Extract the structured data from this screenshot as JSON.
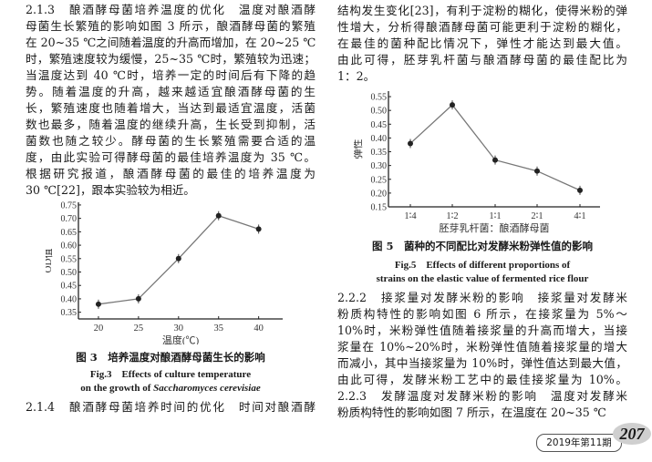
{
  "left_column": {
    "lines": [
      "2.1.3　酿酒酵母菌培养温度的优化　温度对酿酒酵",
      "母菌生长繁殖的影响如图 3 所示，酿酒酵母菌的繁殖",
      "在 20~35 ℃之间随着温度的升高而增加，在 20~25 ℃",
      "时，繁殖速度较为缓慢，25~35 ℃时，繁殖较为迅速；",
      "当温度达到 40 ℃时，培养一定的时间后有下降的趋",
      "势。随着温度的升高，越来越适宜酿酒酵母菌的生",
      "长，繁殖速度也随着增大，当达到最适宜温度，活菌",
      "数也最多，随着温度的继续升高，生长受到抑制，活",
      "菌数也随之较少。酵母菌的生长繁殖需要合适的温",
      "度，由此实验可得酵母菌的最佳培养温度为 35 ℃。",
      "根据研究报道，酿酒酵母菌的最佳的培养温度为",
      "30 ℃[22]，跟本实验较为相近。"
    ],
    "fig3_caption_cn": "图 3　培养温度对酿酒酵母菌生长的影响",
    "fig3_caption_en1": "Fig.3　Effects of culture temperature",
    "fig3_caption_en2_pre": "on the growth of ",
    "fig3_caption_en2_italic": "Saccharomyces cerevisiae",
    "section_214": "2.1.4　酿酒酵母菌培养时间的优化　时间对酿酒酵"
  },
  "right_column": {
    "lines_top": [
      "结构发生变化[23]，有利于淀粉的糊化，使得米粉的弹",
      "性增大，分析得酿酒酵母菌可能更利于淀粉的糊化，",
      "在最佳的菌种配比情况下，弹性才能达到最大值。",
      "由此可得，胚芽乳杆菌与酿酒酵母菌的最佳配比为",
      "1：2。"
    ],
    "fig5_caption_cn": "图 5　菌种的不同配比对发酵米粉弹性值的影响",
    "fig5_caption_en1": "Fig.5　Effects of different proportions of",
    "fig5_caption_en2": "strains on the elastic value of fermented rice flour",
    "lines_bottom": [
      "2.2.2　接浆量对发酵米粉的影响　接浆量对发酵米",
      "粉质构特性的影响如图 6 所示，在接浆量为 5%～",
      "10%时，米粉弹性值随着接浆量的升高而增大，当接",
      "浆量在 10%~20%时，米粉弹性值随着接浆量的增大",
      "而减小，其中当接浆量为 10%时，弹性值达到最大值，",
      "由此可得，发酵米粉工艺中的最佳接浆量为 10%。",
      "2.2.3　发酵温度对发酵米粉的影响　温度对发酵米",
      "粉质构特性的影响如图 7 所示，在温度在 20~35 ℃"
    ]
  },
  "footer": {
    "issue": "2019年第11期",
    "page_number": "207"
  },
  "chart_data": [
    {
      "type": "line",
      "xlabel": "温度(℃)",
      "ylabel": "OD值",
      "x": [
        20,
        25,
        30,
        35,
        40
      ],
      "y": [
        0.38,
        0.4,
        0.55,
        0.71,
        0.66
      ],
      "error_bars": true,
      "x_ticks": [
        "20",
        "25",
        "30",
        "35",
        "40"
      ],
      "y_ticks": [
        "0.35",
        "0.40",
        "0.45",
        "0.50",
        "0.55",
        "0.60",
        "0.65",
        "0.70",
        "0.75"
      ],
      "xlim": [
        17.5,
        43
      ],
      "ylim": [
        0.325,
        0.76
      ],
      "grid": false
    },
    {
      "type": "line",
      "xlabel": "胚芽乳杆菌：酿酒酵母菌",
      "ylabel": "弹性",
      "categories": [
        "1∶4",
        "1∶2",
        "1∶1",
        "2∶1",
        "4∶1"
      ],
      "values": [
        0.38,
        0.52,
        0.32,
        0.28,
        0.21
      ],
      "error_bars": true,
      "y_ticks": [
        "0.15",
        "0.20",
        "0.25",
        "0.30",
        "0.35",
        "0.40",
        "0.45",
        "0.50",
        "0.55"
      ],
      "ylim": [
        0.15,
        0.57
      ],
      "grid": false
    }
  ]
}
